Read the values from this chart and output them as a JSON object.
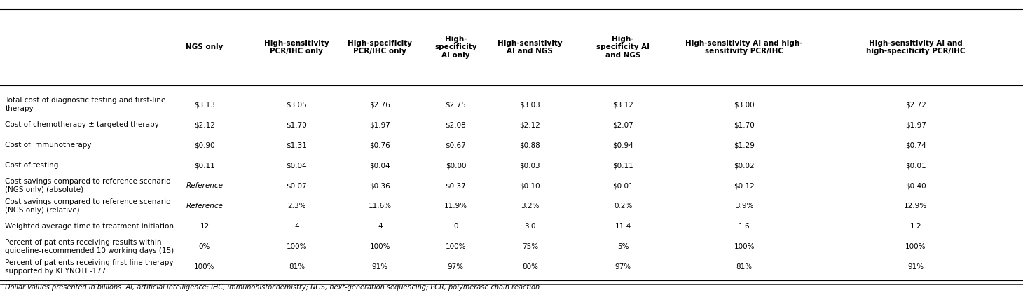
{
  "col_headers": [
    "",
    "NGS only",
    "High-sensitivity\nPCR/IHC only",
    "High-specificity\nPCR/IHC only",
    "High-\nspecificity\nAI only",
    "High-sensitivity\nAI and NGS",
    "High-\nspecificity AI\nand NGS",
    "High-sensitivity AI and high-\nsensitivity PCR/IHC",
    "High-sensitivity AI and\nhigh-specificity PCR/IHC"
  ],
  "rows": [
    {
      "label": "Total cost of diagnostic testing and first-line\ntherapy",
      "values": [
        "$3.13",
        "$3.05",
        "$2.76",
        "$2.75",
        "$3.03",
        "$3.12",
        "$3.00",
        "$2.72"
      ],
      "italic": [
        false,
        false,
        false,
        false,
        false,
        false,
        false,
        false
      ]
    },
    {
      "label": "Cost of chemotherapy ± targeted therapy",
      "values": [
        "$2.12",
        "$1.70",
        "$1.97",
        "$2.08",
        "$2.12",
        "$2.07",
        "$1.70",
        "$1.97"
      ],
      "italic": [
        false,
        false,
        false,
        false,
        false,
        false,
        false,
        false
      ]
    },
    {
      "label": "Cost of immunotherapy",
      "values": [
        "$0.90",
        "$1.31",
        "$0.76",
        "$0.67",
        "$0.88",
        "$0.94",
        "$1.29",
        "$0.74"
      ],
      "italic": [
        false,
        false,
        false,
        false,
        false,
        false,
        false,
        false
      ]
    },
    {
      "label": "Cost of testing",
      "values": [
        "$0.11",
        "$0.04",
        "$0.04",
        "$0.00",
        "$0.03",
        "$0.11",
        "$0.02",
        "$0.01"
      ],
      "italic": [
        false,
        false,
        false,
        false,
        false,
        false,
        false,
        false
      ]
    },
    {
      "label": "Cost savings compared to reference scenario\n(NGS only) (absolute)",
      "values": [
        "Reference",
        "$0.07",
        "$0.36",
        "$0.37",
        "$0.10",
        "$0.01",
        "$0.12",
        "$0.40"
      ],
      "italic": [
        true,
        false,
        false,
        false,
        false,
        false,
        false,
        false
      ]
    },
    {
      "label": "Cost savings compared to reference scenario\n(NGS only) (relative)",
      "values": [
        "Reference",
        "2.3%",
        "11.6%",
        "11.9%",
        "3.2%",
        "0.2%",
        "3.9%",
        "12.9%"
      ],
      "italic": [
        true,
        false,
        false,
        false,
        false,
        false,
        false,
        false
      ]
    },
    {
      "label": "Weighted average time to treatment initiation",
      "values": [
        "12",
        "4",
        "4",
        "0",
        "3.0",
        "11.4",
        "1.6",
        "1.2"
      ],
      "italic": [
        false,
        false,
        false,
        false,
        false,
        false,
        false,
        false
      ]
    },
    {
      "label": "Percent of patients receiving results within\nguideline-recommended 10 working days (15)",
      "values": [
        "0%",
        "100%",
        "100%",
        "100%",
        "75%",
        "5%",
        "100%",
        "100%"
      ],
      "italic": [
        false,
        false,
        false,
        false,
        false,
        false,
        false,
        false
      ]
    },
    {
      "label": "Percent of patients receiving first-line therapy\nsupported by KEYNOTE-177",
      "values": [
        "100%",
        "81%",
        "91%",
        "97%",
        "80%",
        "97%",
        "81%",
        "91%"
      ],
      "italic": [
        false,
        false,
        false,
        false,
        false,
        false,
        false,
        false
      ]
    }
  ],
  "footnote": "Dollar values presented in billions. AI, artificial intelligence; IHC, immunohistochemistry; NGS, next-generation sequencing; PCR, polymerase chain reaction.",
  "bg_color": "#ffffff",
  "text_color": "#000000",
  "header_fontsize": 7.5,
  "body_fontsize": 7.5,
  "footnote_fontsize": 7.0
}
